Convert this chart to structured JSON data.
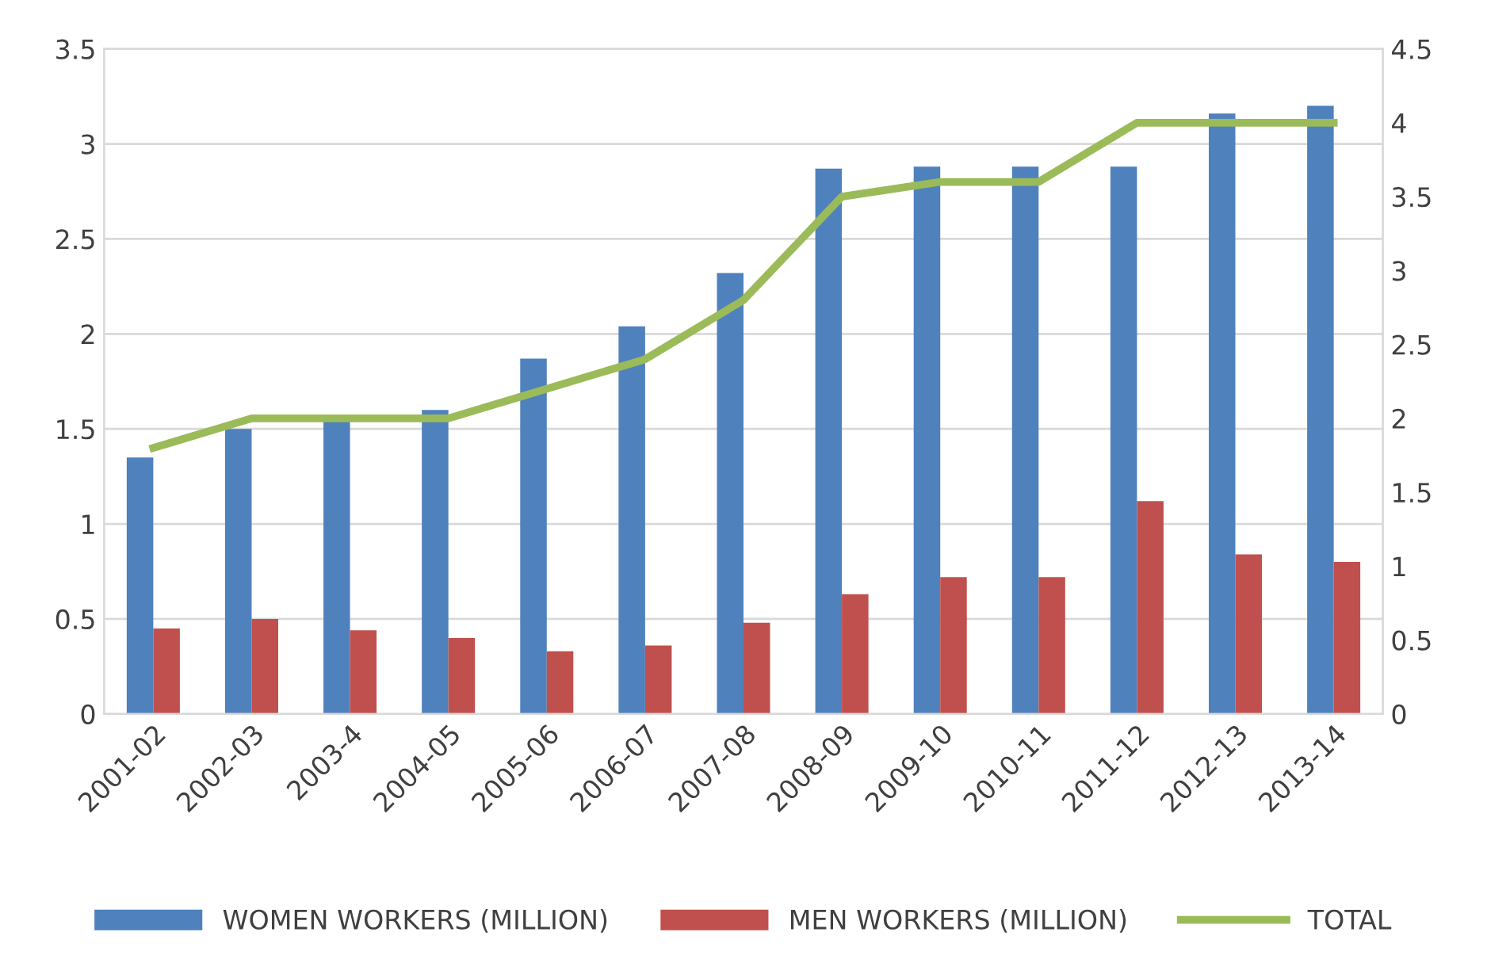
{
  "chart_data": {
    "type": "bar",
    "categories": [
      "2001-02",
      "2002-03",
      "2003-4",
      "2004-05",
      "2005-06",
      "2006-07",
      "2007-08",
      "2008-09",
      "2009-10",
      "2010-11",
      "2011-12",
      "2012-13",
      "2013-14"
    ],
    "series": [
      {
        "name": "WOMEN WORKERS (MILLION)",
        "color": "#4f81bd",
        "values": [
          1.35,
          1.5,
          1.55,
          1.6,
          1.87,
          2.04,
          2.32,
          2.87,
          2.88,
          2.88,
          2.88,
          3.16,
          3.2
        ]
      },
      {
        "name": "MEN WORKERS (MILLION)",
        "color": "#c0504d",
        "values": [
          0.45,
          0.5,
          0.44,
          0.4,
          0.33,
          0.36,
          0.48,
          0.63,
          0.72,
          0.72,
          1.12,
          0.84,
          0.8
        ]
      },
      {
        "name": "TOTAL",
        "color": "#9bbb59",
        "type": "line",
        "axis": "y2",
        "values": [
          1.8,
          2,
          2,
          2,
          2.2,
          2.4,
          2.8,
          3.5,
          3.6,
          3.6,
          4,
          4,
          4
        ]
      }
    ],
    "ylim": [
      0,
      3.5
    ],
    "yticks": [
      0,
      0.5,
      1,
      1.5,
      2,
      2.5,
      3,
      3.5
    ],
    "y2lim": [
      0,
      4.5
    ],
    "y2ticks": [
      0,
      0.5,
      1,
      1.5,
      2,
      2.5,
      3,
      3.5,
      4,
      4.5
    ],
    "grid": "y",
    "legend": "bottom",
    "marker": "none",
    "line_style": "solid"
  }
}
